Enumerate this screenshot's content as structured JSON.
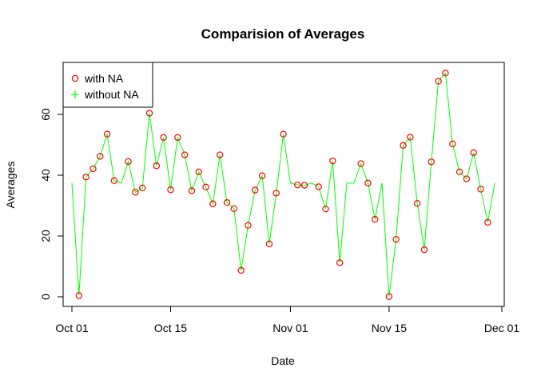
{
  "chart_data": {
    "type": "line",
    "title": "Comparision of Averages",
    "xlabel": "Date",
    "ylabel": "Averages",
    "xlim": [
      "2012-10-01",
      "2012-11-30"
    ],
    "ylim": [
      0,
      70
    ],
    "grid": false,
    "legend_position": "top-left",
    "x_ticks": [
      "2012-10-01",
      "2012-10-15",
      "2012-11-01",
      "2012-11-15",
      "2012-12-01"
    ],
    "x_tick_labels": [
      "Oct 01",
      "Oct 15",
      "Nov 01",
      "Nov 15",
      "Dec 01"
    ],
    "y_ticks": [
      0,
      20,
      40,
      60
    ],
    "y_tick_labels": [
      "0",
      "20",
      "40",
      "60"
    ],
    "x": [
      "2012-10-01",
      "2012-10-02",
      "2012-10-03",
      "2012-10-04",
      "2012-10-05",
      "2012-10-06",
      "2012-10-07",
      "2012-10-08",
      "2012-10-09",
      "2012-10-10",
      "2012-10-11",
      "2012-10-12",
      "2012-10-13",
      "2012-10-14",
      "2012-10-15",
      "2012-10-16",
      "2012-10-17",
      "2012-10-18",
      "2012-10-19",
      "2012-10-20",
      "2012-10-21",
      "2012-10-22",
      "2012-10-23",
      "2012-10-24",
      "2012-10-25",
      "2012-10-26",
      "2012-10-27",
      "2012-10-28",
      "2012-10-29",
      "2012-10-30",
      "2012-10-31",
      "2012-11-01",
      "2012-11-02",
      "2012-11-03",
      "2012-11-04",
      "2012-11-05",
      "2012-11-06",
      "2012-11-07",
      "2012-11-08",
      "2012-11-09",
      "2012-11-10",
      "2012-11-11",
      "2012-11-12",
      "2012-11-13",
      "2012-11-14",
      "2012-11-15",
      "2012-11-16",
      "2012-11-17",
      "2012-11-18",
      "2012-11-19",
      "2012-11-20",
      "2012-11-21",
      "2012-11-22",
      "2012-11-23",
      "2012-11-24",
      "2012-11-25",
      "2012-11-26",
      "2012-11-27",
      "2012-11-28",
      "2012-11-29",
      "2012-11-30"
    ],
    "series": [
      {
        "name": "with NA",
        "style": "points",
        "marker": "open-circle",
        "color": "#ff0000",
        "values": [
          null,
          0.4,
          39.4,
          42.1,
          46.2,
          53.5,
          38.2,
          null,
          44.5,
          34.4,
          35.8,
          60.4,
          43.1,
          52.4,
          35.2,
          52.4,
          46.7,
          34.9,
          41.1,
          36.1,
          30.6,
          46.7,
          31.0,
          29.0,
          8.7,
          23.5,
          35.1,
          39.8,
          17.4,
          34.1,
          53.5,
          null,
          36.8,
          36.7,
          null,
          36.2,
          28.9,
          44.7,
          11.2,
          null,
          null,
          43.8,
          37.4,
          25.5,
          null,
          0.1,
          18.9,
          49.8,
          52.5,
          30.7,
          15.5,
          44.4,
          70.9,
          73.6,
          50.3,
          41.1,
          38.8,
          47.4,
          35.4,
          24.5,
          null
        ]
      },
      {
        "name": "without NA",
        "style": "line",
        "marker": "plus",
        "color": "#00ff00",
        "values": [
          37.4,
          0.4,
          39.4,
          42.1,
          46.2,
          53.5,
          38.2,
          37.4,
          44.5,
          34.4,
          35.8,
          60.4,
          43.1,
          52.4,
          35.2,
          52.4,
          46.7,
          34.9,
          41.1,
          36.1,
          30.6,
          46.7,
          31.0,
          29.0,
          8.7,
          23.5,
          35.1,
          39.8,
          17.4,
          34.1,
          53.5,
          37.4,
          36.8,
          36.7,
          37.4,
          36.2,
          28.9,
          44.7,
          11.2,
          37.4,
          37.4,
          43.8,
          37.4,
          25.5,
          37.4,
          0.1,
          18.9,
          49.8,
          52.5,
          30.7,
          15.5,
          44.4,
          70.9,
          73.6,
          50.3,
          41.1,
          38.8,
          47.4,
          35.4,
          24.5,
          37.4
        ]
      }
    ]
  }
}
